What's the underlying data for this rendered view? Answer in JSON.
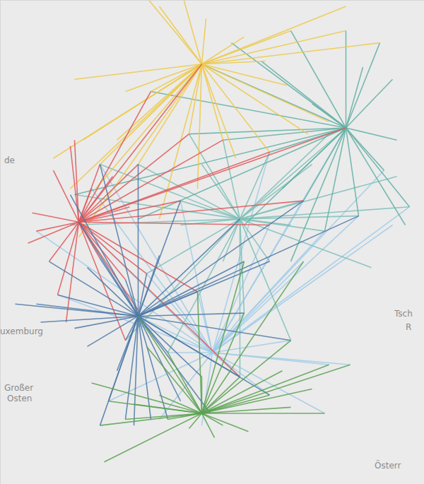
{
  "chart_data": {
    "type": "map",
    "tick_labels": false,
    "xlim": [
      5.25,
      15.25
    ],
    "ylim": [
      46.63,
      54.6
    ],
    "labels": [
      "de",
      "uxemburg",
      "Tsch",
      "R",
      "Großer",
      "Osten",
      "Österr"
    ],
    "series": [
      {
        "color": "#a0cbe8",
        "hub": [
          10.25,
          48.8
        ],
        "points": [
          [
            12.1,
            49.0
          ],
          [
            13.0,
            48.6
          ],
          [
            13.5,
            48.6
          ],
          [
            12.4,
            50.3
          ],
          [
            12.9,
            50.8
          ],
          [
            13.7,
            51.05
          ],
          [
            14.9,
            51.2
          ],
          [
            14.5,
            50.9
          ],
          [
            12.4,
            51.3
          ],
          [
            11.6,
            50.9
          ],
          [
            11.0,
            49.45
          ],
          [
            9.9,
            49.8
          ],
          [
            8.7,
            50.1
          ],
          [
            8.5,
            49.4
          ],
          [
            9.2,
            48.8
          ],
          [
            7.8,
            48.0
          ],
          [
            6.6,
            49.75
          ],
          [
            6.1,
            50.8
          ],
          [
            7.1,
            50.95
          ],
          [
            7.6,
            51.9
          ],
          [
            9.5,
            51.3
          ],
          [
            11.6,
            52.1
          ],
          [
            13.4,
            52.5
          ],
          [
            14.3,
            51.8
          ],
          [
            12.9,
            47.8
          ],
          [
            11.6,
            48.1
          ],
          [
            10.9,
            48.4
          ],
          [
            10.0,
            47.6
          ],
          [
            9.0,
            47.7
          ],
          [
            7.4,
            51.5
          ]
        ]
      },
      {
        "color": "#7fbfb8",
        "hub": [
          10.9,
          51.0
        ],
        "points": [
          [
            12.4,
            51.3
          ],
          [
            13.7,
            51.05
          ],
          [
            14.9,
            51.2
          ],
          [
            14.6,
            51.7
          ],
          [
            12.9,
            50.8
          ],
          [
            12.1,
            50.9
          ],
          [
            11.6,
            50.3
          ],
          [
            10.5,
            50.3
          ],
          [
            9.5,
            50.9
          ],
          [
            9.5,
            51.3
          ],
          [
            10.0,
            51.9
          ],
          [
            11.6,
            52.1
          ],
          [
            12.6,
            51.9
          ],
          [
            8.7,
            50.1
          ],
          [
            8.2,
            49.0
          ],
          [
            7.0,
            51.4
          ],
          [
            6.9,
            50.9
          ],
          [
            9.7,
            52.4
          ],
          [
            13.4,
            52.5
          ],
          [
            11.0,
            49.45
          ],
          [
            12.1,
            49.0
          ],
          [
            14.0,
            50.2
          ],
          [
            8.5,
            51.9
          ],
          [
            10.9,
            48.4
          ],
          [
            9.2,
            48.8
          ],
          [
            7.6,
            51.9
          ],
          [
            13.0,
            52.4
          ],
          [
            10.5,
            52.3
          ]
        ]
      },
      {
        "color": "#63b0a5",
        "hub": [
          13.4,
          52.5
        ],
        "points": [
          [
            14.2,
            53.9
          ],
          [
            13.4,
            54.1
          ],
          [
            12.1,
            54.1
          ],
          [
            11.4,
            53.6
          ],
          [
            14.5,
            53.3
          ],
          [
            14.6,
            52.3
          ],
          [
            14.3,
            51.8
          ],
          [
            14.9,
            51.2
          ],
          [
            13.7,
            51.05
          ],
          [
            12.4,
            51.3
          ],
          [
            11.9,
            51.5
          ],
          [
            12.9,
            50.8
          ],
          [
            11.6,
            52.1
          ],
          [
            10.5,
            52.3
          ],
          [
            9.7,
            52.4
          ],
          [
            8.8,
            53.1
          ],
          [
            10.0,
            53.55
          ],
          [
            7.0,
            51.4
          ],
          [
            8.5,
            51.0
          ],
          [
            11.0,
            50.9
          ],
          [
            12.1,
            50.3
          ],
          [
            14.8,
            50.9
          ],
          [
            13.0,
            52.4
          ],
          [
            12.6,
            52.9
          ],
          [
            13.8,
            53.5
          ],
          [
            10.7,
            53.9
          ]
        ]
      },
      {
        "color": "#edc948",
        "hub": [
          10.0,
          53.55
        ],
        "points": [
          [
            7.0,
            53.3
          ],
          [
            7.2,
            52.3
          ],
          [
            6.9,
            51.5
          ],
          [
            7.6,
            51.9
          ],
          [
            8.8,
            53.1
          ],
          [
            8.2,
            53.1
          ],
          [
            9.0,
            54.5
          ],
          [
            10.1,
            54.3
          ],
          [
            11.0,
            54.0
          ],
          [
            12.1,
            54.1
          ],
          [
            13.4,
            54.1
          ],
          [
            14.2,
            53.9
          ],
          [
            13.4,
            54.5
          ],
          [
            12.5,
            52.4
          ],
          [
            11.6,
            52.1
          ],
          [
            10.5,
            52.3
          ],
          [
            9.7,
            52.4
          ],
          [
            8.0,
            52.3
          ],
          [
            7.5,
            51.5
          ],
          [
            9.0,
            51.0
          ],
          [
            6.5,
            52.0
          ],
          [
            11.5,
            53.6
          ],
          [
            12.0,
            53.2
          ],
          [
            9.5,
            54.8
          ],
          [
            8.4,
            54.9
          ],
          [
            10.8,
            52.0
          ],
          [
            9.9,
            51.5
          ],
          [
            8.5,
            51.9
          ],
          [
            7.1,
            50.7
          ],
          [
            13.0,
            52.6
          ]
        ]
      },
      {
        "color": "#e15759",
        "hub": [
          7.1,
          50.95
        ],
        "points": [
          [
            6.0,
            51.1
          ],
          [
            6.1,
            50.8
          ],
          [
            6.5,
            51.8
          ],
          [
            7.0,
            52.3
          ],
          [
            7.6,
            51.9
          ],
          [
            8.5,
            51.9
          ],
          [
            8.8,
            53.1
          ],
          [
            10.0,
            53.55
          ],
          [
            9.7,
            52.4
          ],
          [
            10.5,
            52.3
          ],
          [
            11.6,
            52.1
          ],
          [
            12.4,
            51.3
          ],
          [
            13.4,
            52.5
          ],
          [
            9.5,
            51.3
          ],
          [
            8.7,
            50.1
          ],
          [
            8.2,
            50.0
          ],
          [
            7.6,
            50.35
          ],
          [
            6.6,
            49.75
          ],
          [
            6.4,
            50.3
          ],
          [
            5.9,
            50.6
          ],
          [
            8.2,
            49.0
          ],
          [
            8.5,
            49.5
          ],
          [
            9.9,
            49.8
          ],
          [
            11.6,
            50.9
          ],
          [
            6.9,
            52.2
          ],
          [
            7.4,
            51.5
          ],
          [
            7.9,
            51.7
          ],
          [
            8.3,
            51.2
          ],
          [
            6.8,
            49.3
          ],
          [
            10.9,
            48.4
          ]
        ]
      },
      {
        "color": "#4e79a7",
        "hub": [
          8.5,
          49.4
        ],
        "points": [
          [
            5.6,
            49.6
          ],
          [
            6.1,
            49.6
          ],
          [
            6.6,
            49.75
          ],
          [
            7.0,
            49.2
          ],
          [
            7.6,
            47.6
          ],
          [
            7.8,
            48.0
          ],
          [
            8.2,
            47.7
          ],
          [
            9.2,
            47.7
          ],
          [
            8.4,
            47.6
          ],
          [
            9.2,
            48.8
          ],
          [
            10.0,
            48.4
          ],
          [
            10.9,
            48.4
          ],
          [
            11.6,
            48.1
          ],
          [
            11.0,
            49.45
          ],
          [
            12.1,
            49.0
          ],
          [
            11.6,
            50.3
          ],
          [
            9.9,
            49.8
          ],
          [
            8.7,
            50.1
          ],
          [
            8.2,
            50.0
          ],
          [
            7.1,
            50.95
          ],
          [
            6.9,
            51.4
          ],
          [
            7.6,
            51.9
          ],
          [
            8.5,
            51.9
          ],
          [
            9.5,
            51.3
          ],
          [
            10.9,
            51.0
          ],
          [
            12.4,
            51.3
          ],
          [
            13.7,
            51.05
          ],
          [
            11.0,
            50.3
          ],
          [
            7.3,
            50.2
          ],
          [
            7.6,
            50.35
          ],
          [
            6.4,
            50.3
          ],
          [
            9.0,
            50.4
          ],
          [
            8.2,
            49.0
          ],
          [
            8.0,
            48.5
          ],
          [
            7.3,
            48.9
          ],
          [
            6.2,
            49.3
          ],
          [
            8.8,
            47.7
          ],
          [
            9.5,
            48.0
          ],
          [
            10.2,
            47.8
          ]
        ]
      },
      {
        "color": "#59a14f",
        "hub": [
          10.0,
          47.8
        ],
        "points": [
          [
            7.6,
            47.6
          ],
          [
            8.2,
            47.7
          ],
          [
            9.2,
            47.7
          ],
          [
            9.7,
            47.55
          ],
          [
            10.3,
            47.4
          ],
          [
            11.1,
            47.5
          ],
          [
            11.6,
            48.1
          ],
          [
            12.1,
            47.9
          ],
          [
            12.9,
            47.8
          ],
          [
            13.0,
            48.6
          ],
          [
            13.5,
            48.6
          ],
          [
            12.1,
            49.0
          ],
          [
            11.0,
            49.45
          ],
          [
            9.9,
            49.8
          ],
          [
            9.2,
            48.8
          ],
          [
            8.7,
            48.9
          ],
          [
            7.8,
            48.0
          ],
          [
            8.5,
            49.4
          ],
          [
            10.9,
            48.4
          ],
          [
            11.0,
            50.3
          ],
          [
            12.4,
            50.3
          ],
          [
            10.0,
            48.4
          ],
          [
            10.5,
            47.6
          ],
          [
            12.6,
            48.2
          ],
          [
            11.9,
            48.5
          ],
          [
            9.0,
            48.1
          ],
          [
            8.4,
            47.95
          ],
          [
            7.7,
            47.0
          ],
          [
            7.4,
            48.3
          ]
        ]
      }
    ]
  }
}
